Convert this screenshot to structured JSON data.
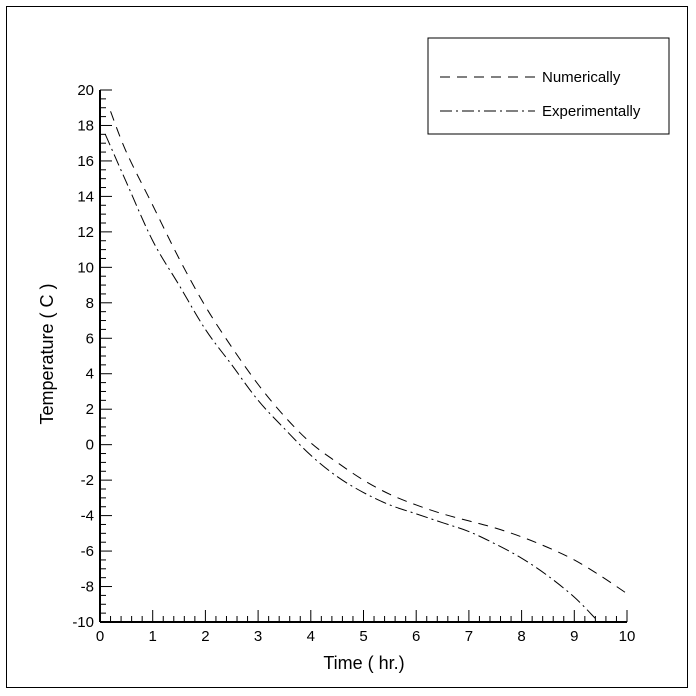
{
  "chart_data": {
    "type": "line",
    "title": "",
    "xlabel": "Time ( hr.)",
    "ylabel": "Temperature ( C )",
    "xlim": [
      0,
      10
    ],
    "ylim": [
      -10,
      20
    ],
    "x_ticks": [
      0,
      1,
      2,
      3,
      4,
      5,
      6,
      7,
      8,
      9,
      10
    ],
    "y_ticks": [
      -10,
      -8,
      -6,
      -4,
      -2,
      0,
      2,
      4,
      6,
      8,
      10,
      12,
      14,
      16,
      18,
      20
    ],
    "grid": false,
    "legend_position": "top-right",
    "series": [
      {
        "name": "Numerically",
        "dash": "dashed",
        "color": "#000000",
        "points": [
          [
            0.2,
            18.8
          ],
          [
            0.5,
            16.5
          ],
          [
            1.0,
            13.5
          ],
          [
            1.5,
            10.5
          ],
          [
            2.0,
            7.8
          ],
          [
            2.5,
            5.5
          ],
          [
            3.0,
            3.4
          ],
          [
            3.5,
            1.6
          ],
          [
            4.0,
            0.1
          ],
          [
            4.5,
            -1.0
          ],
          [
            5.0,
            -2.0
          ],
          [
            5.5,
            -2.8
          ],
          [
            6.0,
            -3.4
          ],
          [
            6.5,
            -3.9
          ],
          [
            7.0,
            -4.3
          ],
          [
            7.5,
            -4.7
          ],
          [
            8.0,
            -5.2
          ],
          [
            8.5,
            -5.8
          ],
          [
            9.0,
            -6.5
          ],
          [
            9.5,
            -7.4
          ],
          [
            10.0,
            -8.4
          ]
        ]
      },
      {
        "name": "Experimentally",
        "dash": "dash-dot",
        "color": "#000000",
        "points": [
          [
            0.1,
            17.5
          ],
          [
            0.5,
            14.8
          ],
          [
            1.0,
            11.5
          ],
          [
            1.5,
            9.0
          ],
          [
            2.0,
            6.5
          ],
          [
            2.5,
            4.5
          ],
          [
            3.0,
            2.5
          ],
          [
            3.5,
            0.9
          ],
          [
            4.0,
            -0.6
          ],
          [
            4.5,
            -1.8
          ],
          [
            5.0,
            -2.7
          ],
          [
            5.5,
            -3.4
          ],
          [
            6.0,
            -3.9
          ],
          [
            6.5,
            -4.4
          ],
          [
            7.0,
            -4.9
          ],
          [
            7.5,
            -5.6
          ],
          [
            8.0,
            -6.4
          ],
          [
            8.5,
            -7.4
          ],
          [
            9.0,
            -8.6
          ],
          [
            9.4,
            -9.8
          ]
        ]
      }
    ]
  }
}
